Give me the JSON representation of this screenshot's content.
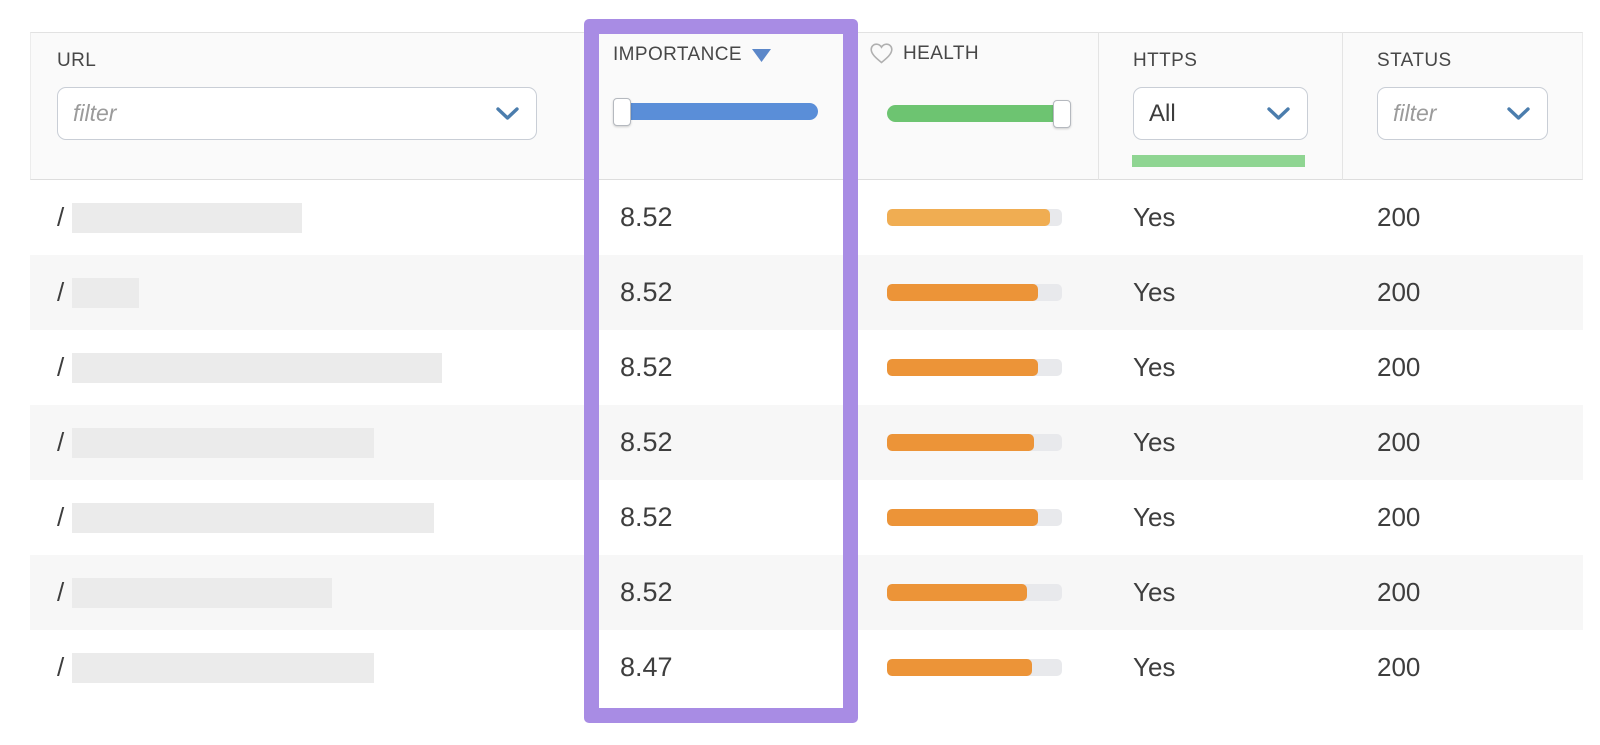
{
  "colors": {
    "purple_highlight": "#a88ce4",
    "importance_slider": "#5a8ed8",
    "health_slider": "#6dc471",
    "https_active_bar": "#8fd592",
    "health_bar_light": "#f0ad52",
    "health_bar_orange": "#ec9438",
    "bar_track": "#e8e9ec",
    "row_stripe": "#f7f7f7",
    "redaction_block": "#ebebeb",
    "sort_arrow": "#5b87c9",
    "chevron": "#4b7dad"
  },
  "header": {
    "url": {
      "label": "URL",
      "filter_placeholder": "filter"
    },
    "importance": {
      "label": "IMPORTANCE",
      "sort": "desc",
      "slider_handle_position": "left"
    },
    "health": {
      "label": "HEALTH",
      "icon": "heart-icon",
      "slider_handle_position": "right"
    },
    "https": {
      "label": "HTTPS",
      "selected_option": "All"
    },
    "status": {
      "label": "STATUS",
      "filter_placeholder": "filter"
    }
  },
  "rows": [
    {
      "url_prefix": "/",
      "url_redacted_width": 230,
      "importance": "8.52",
      "health_pct": 93,
      "health_shade": "light",
      "https": "Yes",
      "status": "200"
    },
    {
      "url_prefix": "/",
      "url_redacted_width": 67,
      "importance": "8.52",
      "health_pct": 86,
      "health_shade": "normal",
      "https": "Yes",
      "status": "200"
    },
    {
      "url_prefix": "/",
      "url_redacted_width": 370,
      "importance": "8.52",
      "health_pct": 86,
      "health_shade": "normal",
      "https": "Yes",
      "status": "200"
    },
    {
      "url_prefix": "/",
      "url_redacted_width": 302,
      "importance": "8.52",
      "health_pct": 84,
      "health_shade": "normal",
      "https": "Yes",
      "status": "200"
    },
    {
      "url_prefix": "/",
      "url_redacted_width": 362,
      "importance": "8.52",
      "health_pct": 86,
      "health_shade": "normal",
      "https": "Yes",
      "status": "200"
    },
    {
      "url_prefix": "/",
      "url_redacted_width": 260,
      "importance": "8.52",
      "health_pct": 80,
      "health_shade": "normal",
      "https": "Yes",
      "status": "200"
    },
    {
      "url_prefix": "/",
      "url_redacted_width": 302,
      "importance": "8.47",
      "health_pct": 83,
      "health_shade": "normal",
      "https": "Yes",
      "status": "200"
    }
  ]
}
